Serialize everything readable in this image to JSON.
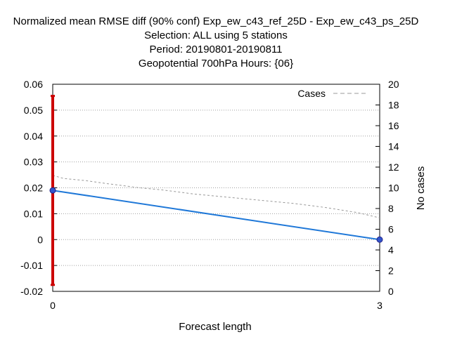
{
  "chart_data": {
    "type": "line",
    "title_lines": [
      "Normalized mean RMSE diff (90% conf) Exp_ew_c43_ref_25D - Exp_ew_c43_ps_25D",
      "Selection: ALL using      5 stations",
      "Period: 20190801-20190811",
      "Geopotential 700hPa   Hours: {06}"
    ],
    "xlabel": "Forecast length",
    "ylabel_right": "No cases",
    "x_ticks": [
      "0",
      "3"
    ],
    "xlim": [
      0,
      3
    ],
    "ylim": [
      -0.02,
      0.06
    ],
    "y_ticks": [
      "-0.02",
      "-0.01",
      "0",
      "0.01",
      "0.02",
      "0.03",
      "0.04",
      "0.05",
      "0.06"
    ],
    "y2lim": [
      0,
      20
    ],
    "y2_ticks": [
      "0",
      "2",
      "4",
      "6",
      "8",
      "10",
      "12",
      "14",
      "16",
      "18",
      "20"
    ],
    "grid": true,
    "legend_position": "top-right",
    "series": [
      {
        "role": "rmse_diff",
        "x": [
          0,
          3
        ],
        "y": [
          0.019,
          0.0
        ],
        "color": "#1f78d8",
        "marker_color": "#3355cc"
      },
      {
        "role": "confidence_interval",
        "x": [
          0
        ],
        "low": [
          -0.0175
        ],
        "high": [
          0.0555
        ],
        "color": "#cc0000"
      },
      {
        "name": "Cases",
        "axis": "right",
        "x": [
          0,
          0.1,
          0.3,
          0.5,
          0.8,
          1.0,
          1.3,
          1.6,
          1.9,
          2.2,
          2.5,
          2.8,
          3.0
        ],
        "y": [
          11.2,
          10.9,
          10.7,
          10.4,
          10.0,
          9.8,
          9.4,
          9.1,
          8.8,
          8.5,
          8.1,
          7.6,
          7.1
        ],
        "color": "#999999"
      }
    ]
  }
}
